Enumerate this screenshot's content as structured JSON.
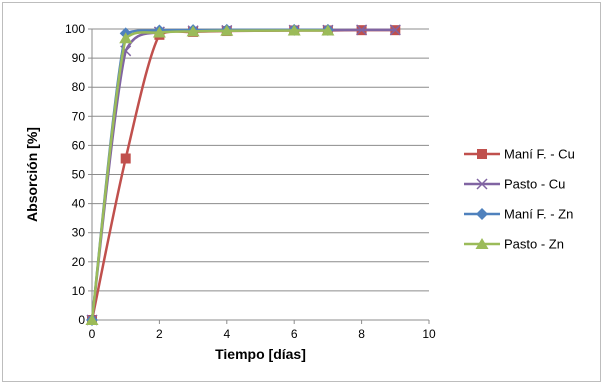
{
  "chart_data": {
    "type": "line",
    "xlabel": "Tiempo [días]",
    "ylabel": "Absorción [%]",
    "xlim": [
      0,
      10
    ],
    "ylim": [
      0,
      100
    ],
    "xticks": [
      "0",
      "2",
      "4",
      "6",
      "8",
      "10"
    ],
    "yticks": [
      "0",
      "10",
      "20",
      "30",
      "40",
      "50",
      "60",
      "70",
      "80",
      "90",
      "100"
    ],
    "grid": "horizontal",
    "legend_position": "right",
    "series": [
      {
        "name": "Maní F. - Cu",
        "color": "#c0504d",
        "marker": "square",
        "x": [
          0,
          1,
          2,
          3,
          4,
          6,
          7,
          8,
          9
        ],
        "y": [
          0,
          55.5,
          98.0,
          99.0,
          99.3,
          99.5,
          99.5,
          99.6,
          99.6
        ]
      },
      {
        "name": "Pasto - Cu",
        "color": "#8064a2",
        "marker": "x",
        "x": [
          0,
          1,
          2,
          3,
          4,
          6,
          7,
          8,
          9
        ],
        "y": [
          0,
          92.5,
          99.0,
          99.4,
          99.5,
          99.6,
          99.6,
          99.7,
          99.7
        ]
      },
      {
        "name": "Maní F. - Zn",
        "color": "#4f81bd",
        "marker": "diamond",
        "x": [
          0,
          1,
          2,
          3,
          4,
          6,
          7
        ],
        "y": [
          0,
          98.5,
          99.5,
          99.6,
          99.7,
          99.7,
          99.7
        ]
      },
      {
        "name": "Pasto - Zn",
        "color": "#9bbb59",
        "marker": "triangle",
        "x": [
          0,
          1,
          2,
          3,
          4,
          6,
          7
        ],
        "y": [
          0,
          96.8,
          98.8,
          99.2,
          99.4,
          99.5,
          99.5
        ]
      }
    ]
  }
}
